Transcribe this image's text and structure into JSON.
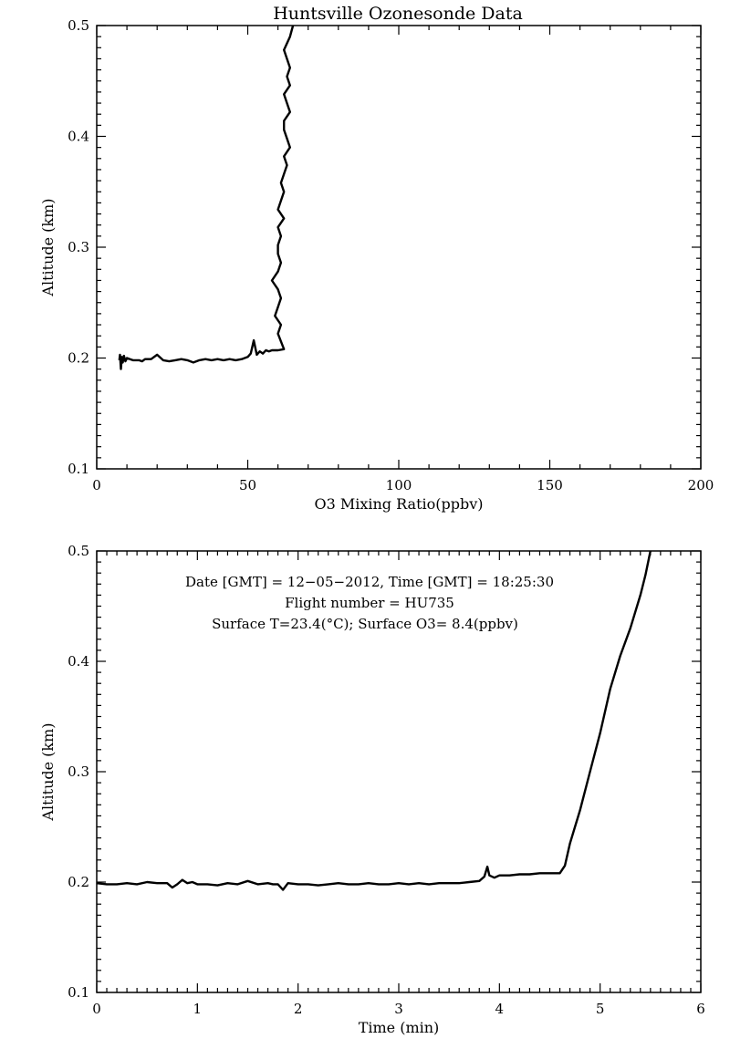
{
  "chart_data": [
    {
      "type": "line",
      "title": "Huntsville Ozonesonde Data",
      "xlabel": "O3 Mixing Ratio(ppbv)",
      "ylabel": "Altitude (km)",
      "xlim": [
        0,
        200
      ],
      "ylim": [
        0.1,
        0.5
      ],
      "xticks": [
        "0",
        "50",
        "100",
        "150",
        "200"
      ],
      "yticks": [
        "0.1",
        "0.2",
        "0.3",
        "0.4",
        "0.5"
      ],
      "grid": false,
      "series": [
        {
          "x": [
            7.5,
            7.7,
            8.0,
            8.3,
            8.6,
            9.0,
            9.5,
            10.0,
            11,
            12,
            13,
            14,
            15,
            16,
            18,
            20,
            22,
            24,
            26,
            28,
            30,
            32,
            34,
            36,
            38,
            40,
            42,
            44,
            46,
            48,
            50,
            51,
            52,
            53,
            54,
            55,
            56,
            57,
            58,
            60,
            62,
            62,
            61,
            60,
            61,
            59,
            60,
            61,
            60,
            58,
            60,
            61,
            60,
            60,
            61,
            60,
            62,
            60,
            61,
            62,
            61,
            62,
            63,
            62,
            64,
            63,
            62,
            62,
            64,
            63,
            62,
            64,
            63,
            64,
            63,
            62,
            64,
            65
          ],
          "y": [
            0.198,
            0.203,
            0.19,
            0.201,
            0.196,
            0.202,
            0.197,
            0.2,
            0.199,
            0.198,
            0.198,
            0.198,
            0.197,
            0.199,
            0.199,
            0.203,
            0.198,
            0.197,
            0.198,
            0.199,
            0.198,
            0.196,
            0.198,
            0.199,
            0.198,
            0.199,
            0.198,
            0.199,
            0.198,
            0.199,
            0.201,
            0.204,
            0.216,
            0.203,
            0.206,
            0.204,
            0.207,
            0.206,
            0.207,
            0.207,
            0.208,
            0.208,
            0.215,
            0.222,
            0.23,
            0.238,
            0.246,
            0.254,
            0.262,
            0.27,
            0.278,
            0.286,
            0.294,
            0.302,
            0.31,
            0.318,
            0.326,
            0.334,
            0.342,
            0.35,
            0.358,
            0.366,
            0.374,
            0.382,
            0.39,
            0.398,
            0.406,
            0.414,
            0.422,
            0.43,
            0.438,
            0.446,
            0.454,
            0.462,
            0.47,
            0.478,
            0.49,
            0.5
          ]
        }
      ]
    },
    {
      "type": "line",
      "title": "",
      "xlabel": "Time (min)",
      "ylabel": "Altitude (km)",
      "xlim": [
        0,
        6
      ],
      "ylim": [
        0.1,
        0.5
      ],
      "xticks": [
        "0",
        "1",
        "2",
        "3",
        "4",
        "5",
        "6"
      ],
      "yticks": [
        "0.1",
        "0.2",
        "0.3",
        "0.4",
        "0.5"
      ],
      "grid": false,
      "annotations": [
        "Date [GMT] = 12−05−2012,  Time [GMT] = 18:25:30",
        "Flight number = HU735",
        "Surface T=23.4(°C); Surface O3= 8.4(ppbv)"
      ],
      "series": [
        {
          "x": [
            0.0,
            0.1,
            0.2,
            0.3,
            0.4,
            0.5,
            0.6,
            0.7,
            0.75,
            0.8,
            0.85,
            0.9,
            0.95,
            1.0,
            1.1,
            1.2,
            1.3,
            1.4,
            1.5,
            1.6,
            1.7,
            1.75,
            1.8,
            1.85,
            1.9,
            2.0,
            2.1,
            2.2,
            2.3,
            2.4,
            2.5,
            2.6,
            2.7,
            2.8,
            2.9,
            3.0,
            3.1,
            3.2,
            3.3,
            3.4,
            3.5,
            3.6,
            3.7,
            3.8,
            3.85,
            3.88,
            3.9,
            3.95,
            4.0,
            4.1,
            4.2,
            4.3,
            4.4,
            4.5,
            4.6,
            4.65,
            4.7,
            4.75,
            4.8,
            4.9,
            5.0,
            5.1,
            5.2,
            5.3,
            5.4,
            5.45,
            5.5
          ],
          "y": [
            0.199,
            0.198,
            0.198,
            0.199,
            0.198,
            0.2,
            0.199,
            0.199,
            0.195,
            0.198,
            0.202,
            0.199,
            0.2,
            0.198,
            0.198,
            0.197,
            0.199,
            0.198,
            0.201,
            0.198,
            0.199,
            0.198,
            0.198,
            0.193,
            0.199,
            0.198,
            0.198,
            0.197,
            0.198,
            0.199,
            0.198,
            0.198,
            0.199,
            0.198,
            0.198,
            0.199,
            0.198,
            0.199,
            0.198,
            0.199,
            0.199,
            0.199,
            0.2,
            0.201,
            0.205,
            0.214,
            0.206,
            0.204,
            0.206,
            0.206,
            0.207,
            0.207,
            0.208,
            0.208,
            0.208,
            0.215,
            0.235,
            0.25,
            0.265,
            0.3,
            0.335,
            0.375,
            0.405,
            0.43,
            0.46,
            0.478,
            0.5
          ]
        }
      ]
    }
  ]
}
